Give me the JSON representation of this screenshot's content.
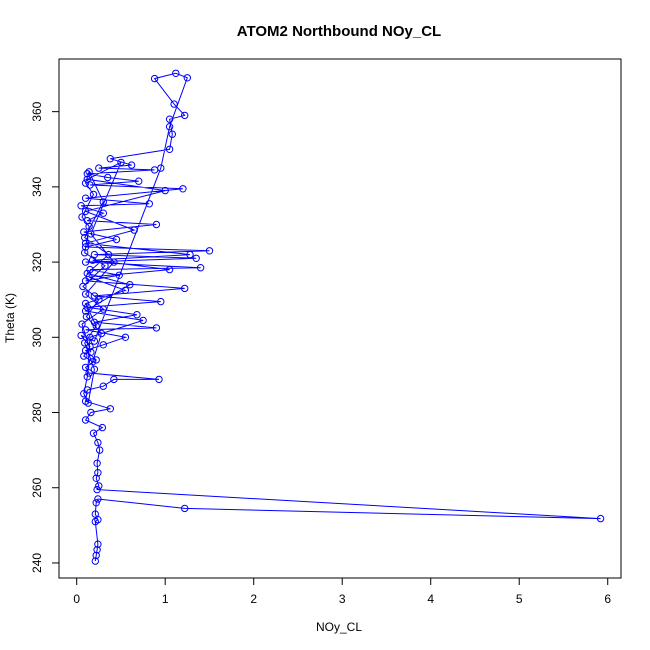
{
  "chart_data": {
    "type": "scatter",
    "title": "ATOM2 Northbound NOy_CL",
    "xlabel": "NOy_CL",
    "ylabel": "Theta (K)",
    "xlim": [
      -0.2,
      6.15
    ],
    "ylim": [
      236,
      374
    ],
    "xticks": [
      0,
      1,
      2,
      3,
      4,
      5,
      6
    ],
    "yticks": [
      240,
      260,
      280,
      300,
      320,
      340,
      360
    ],
    "grid": false,
    "connected": true,
    "marker": "open-circle",
    "color": "#0000ff",
    "series": [
      {
        "points": [
          [
            0.21,
            240.5
          ],
          [
            0.22,
            242.0
          ],
          [
            0.23,
            243.5
          ],
          [
            0.24,
            245.0
          ],
          [
            0.21,
            251.0
          ],
          [
            0.24,
            251.5
          ],
          [
            0.21,
            253.0
          ],
          [
            0.22,
            256.0
          ],
          [
            0.24,
            257.0
          ],
          [
            1.22,
            254.5
          ],
          [
            5.92,
            251.8
          ],
          [
            0.23,
            259.5
          ],
          [
            0.25,
            260.5
          ],
          [
            0.22,
            262.5
          ],
          [
            0.24,
            264.0
          ],
          [
            0.23,
            266.5
          ],
          [
            0.26,
            270.0
          ],
          [
            0.24,
            272.0
          ],
          [
            0.19,
            274.5
          ],
          [
            0.29,
            276.0
          ],
          [
            0.1,
            278.0
          ],
          [
            0.16,
            280.0
          ],
          [
            0.38,
            281.0
          ],
          [
            0.1,
            283.0
          ],
          [
            0.12,
            286.0
          ],
          [
            0.3,
            287.0
          ],
          [
            0.42,
            288.8
          ],
          [
            0.93,
            288.8
          ],
          [
            0.14,
            290.5
          ],
          [
            0.1,
            292.0
          ],
          [
            0.22,
            294.0
          ],
          [
            0.1,
            296.5
          ],
          [
            0.3,
            298.0
          ],
          [
            0.55,
            300.0
          ],
          [
            0.1,
            302.0
          ],
          [
            0.9,
            302.5
          ],
          [
            0.2,
            304.0
          ],
          [
            0.68,
            306.0
          ],
          [
            0.12,
            308.0
          ],
          [
            0.95,
            309.5
          ],
          [
            0.2,
            311.0
          ],
          [
            1.22,
            313.0
          ],
          [
            0.1,
            315.0
          ],
          [
            0.48,
            316.5
          ],
          [
            0.15,
            318.0
          ],
          [
            1.4,
            318.5
          ],
          [
            0.1,
            320.0
          ],
          [
            1.35,
            321.0
          ],
          [
            0.2,
            322.0
          ],
          [
            1.5,
            323.0
          ],
          [
            0.1,
            324.0
          ],
          [
            0.45,
            326.0
          ],
          [
            0.08,
            328.0
          ],
          [
            0.9,
            330.0
          ],
          [
            0.12,
            331.0
          ],
          [
            0.3,
            333.0
          ],
          [
            0.05,
            335.0
          ],
          [
            0.82,
            335.5
          ],
          [
            0.1,
            337.0
          ],
          [
            1.2,
            339.5
          ],
          [
            0.15,
            340.5
          ],
          [
            0.7,
            341.5
          ],
          [
            0.35,
            342.5
          ],
          [
            0.12,
            343.5
          ],
          [
            0.88,
            344.5
          ],
          [
            0.25,
            345.0
          ],
          [
            0.62,
            345.8
          ],
          [
            0.38,
            347.5
          ],
          [
            1.05,
            350.0
          ],
          [
            1.08,
            354.0
          ],
          [
            1.05,
            358.0
          ],
          [
            1.22,
            359.0
          ],
          [
            1.1,
            362.0
          ],
          [
            0.88,
            368.8
          ],
          [
            1.12,
            370.2
          ],
          [
            1.25,
            369.0
          ],
          [
            1.05,
            356.0
          ],
          [
            0.95,
            345.0
          ],
          [
            0.2,
            299.0
          ],
          [
            0.05,
            300.5
          ],
          [
            0.15,
            297.5
          ],
          [
            0.08,
            295.0
          ],
          [
            0.18,
            293.5
          ],
          [
            0.28,
            301.0
          ],
          [
            0.11,
            305.5
          ],
          [
            0.25,
            310.0
          ],
          [
            0.07,
            313.5
          ],
          [
            0.32,
            319.0
          ],
          [
            0.09,
            322.5
          ],
          [
            0.14,
            329.5
          ],
          [
            0.06,
            332.0
          ],
          [
            0.19,
            338.0
          ],
          [
            0.1,
            341.0
          ],
          [
            0.14,
            344.0
          ],
          [
            0.3,
            336.0
          ],
          [
            0.09,
            326.5
          ],
          [
            0.36,
            322.0
          ],
          [
            0.12,
            317.0
          ],
          [
            0.6,
            314.0
          ],
          [
            0.1,
            307.0
          ],
          [
            0.75,
            304.5
          ],
          [
            0.15,
            300.0
          ],
          [
            0.12,
            289.5
          ],
          [
            0.08,
            285.0
          ],
          [
            0.13,
            282.5
          ],
          [
            0.2,
            291.5
          ],
          [
            0.09,
            298.5
          ],
          [
            0.22,
            303.0
          ],
          [
            0.1,
            309.0
          ],
          [
            0.55,
            312.5
          ],
          [
            0.14,
            316.0
          ],
          [
            1.05,
            318.0
          ],
          [
            0.18,
            320.5
          ],
          [
            1.28,
            322.0
          ],
          [
            0.1,
            325.0
          ],
          [
            0.65,
            328.5
          ],
          [
            0.1,
            333.5
          ],
          [
            1.0,
            339.0
          ],
          [
            0.12,
            342.0
          ],
          [
            0.5,
            346.5
          ],
          [
            0.16,
            327.5
          ],
          [
            0.42,
            320.0
          ],
          [
            0.1,
            311.5
          ],
          [
            0.3,
            307.5
          ],
          [
            0.06,
            303.5
          ],
          [
            0.16,
            296.0
          ]
        ]
      }
    ]
  }
}
